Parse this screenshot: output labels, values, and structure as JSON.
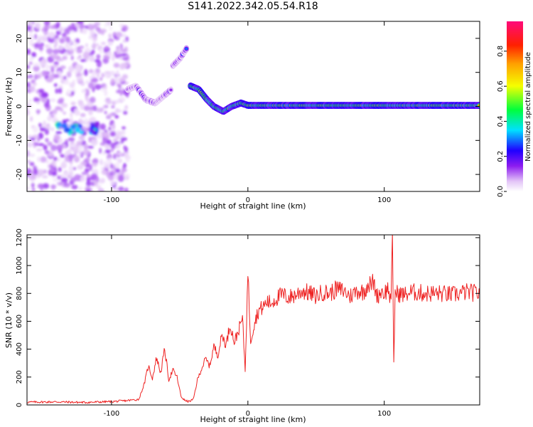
{
  "title": "S141.2022.342.05.54.R18",
  "chart_data": [
    {
      "type": "heatmap",
      "xlabel": "Height of straight line (km)",
      "ylabel": "Frequency (Hz)",
      "xlim": [
        -162,
        170
      ],
      "ylim": [
        -25,
        25
      ],
      "xticks": [
        -100,
        0,
        100
      ],
      "yticks": [
        -20,
        -10,
        0,
        10,
        20
      ],
      "grid": false,
      "colorbar": {
        "label": "Normalized spectral amplitude",
        "range": [
          0.0,
          0.97
        ],
        "ticks": [
          0.0,
          0.2,
          0.4,
          0.6,
          0.8
        ],
        "colormap": [
          "#ffffff",
          "#e3c4f7",
          "#8c1cf0",
          "#2000ff",
          "#00e0ff",
          "#00ff3c",
          "#f5ff00",
          "#ffa000",
          "#ff2000",
          "#ff0a7a"
        ]
      },
      "features": [
        {
          "description": "scattered noise",
          "x_range": [
            -162,
            -88
          ],
          "f_range": [
            -25,
            25
          ],
          "amplitude": 0.12
        },
        {
          "description": "noise patch",
          "x_range": [
            -140,
            -110
          ],
          "f_range": [
            -8,
            -5
          ],
          "amplitude": 0.3
        },
        {
          "description": "rising track",
          "points": [
            [
              -88,
              5
            ],
            [
              -82,
              6
            ],
            [
              -75,
              2
            ],
            [
              -68,
              1
            ],
            [
              -62,
              3
            ],
            [
              -56,
              5
            ]
          ],
          "amplitude": 0.3
        },
        {
          "description": "burst",
          "points": [
            [
              -55,
              12
            ],
            [
              -50,
              14
            ],
            [
              -45,
              17
            ]
          ],
          "amplitude": 0.3
        },
        {
          "description": "main track",
          "points": [
            [
              -42,
              6
            ],
            [
              -36,
              5
            ],
            [
              -30,
              2
            ],
            [
              -25,
              0
            ],
            [
              -18,
              -1.5
            ],
            [
              -12,
              0
            ],
            [
              -5,
              1
            ],
            [
              0,
              0.3
            ],
            [
              170,
              0.3
            ]
          ],
          "amplitude": 0.85
        }
      ]
    },
    {
      "type": "line",
      "xlabel": "Height of straight line (km)",
      "ylabel": "SNR (10 * v/v)",
      "xlim": [
        -162,
        170
      ],
      "ylim": [
        0,
        1220
      ],
      "xticks": [
        -100,
        0,
        100
      ],
      "yticks": [
        0,
        200,
        400,
        600,
        800,
        1000,
        1200
      ],
      "grid": false,
      "series": [
        {
          "color": "#ee2222",
          "x": [
            -162,
            -140,
            -120,
            -100,
            -90,
            -80,
            -76,
            -73,
            -70,
            -67,
            -64,
            -61,
            -58,
            -55,
            -52,
            -49,
            -46,
            -43,
            -40,
            -37,
            -34,
            -31,
            -28,
            -25,
            -22,
            -19,
            -16,
            -13,
            -10,
            -7,
            -4,
            -2,
            0,
            2,
            5,
            8,
            11,
            14,
            17,
            20,
            25,
            30,
            35,
            40,
            45,
            50,
            55,
            60,
            65,
            70,
            75,
            80,
            85,
            88,
            90,
            92,
            95,
            98,
            100,
            103,
            105,
            106,
            107,
            108,
            110,
            115,
            120,
            130,
            140,
            150,
            160,
            170
          ],
          "y": [
            20,
            22,
            18,
            24,
            30,
            40,
            150,
            280,
            190,
            340,
            230,
            400,
            180,
            250,
            200,
            60,
            30,
            25,
            40,
            180,
            260,
            330,
            280,
            420,
            360,
            500,
            430,
            580,
            450,
            530,
            620,
            250,
            950,
            460,
            600,
            680,
            700,
            740,
            730,
            760,
            790,
            770,
            790,
            820,
            800,
            780,
            810,
            800,
            830,
            820,
            780,
            820,
            810,
            870,
            860,
            880,
            780,
            820,
            800,
            840,
            720,
            1180,
            310,
            800,
            800,
            790,
            810,
            800,
            800,
            790,
            810,
            800
          ]
        }
      ]
    }
  ]
}
